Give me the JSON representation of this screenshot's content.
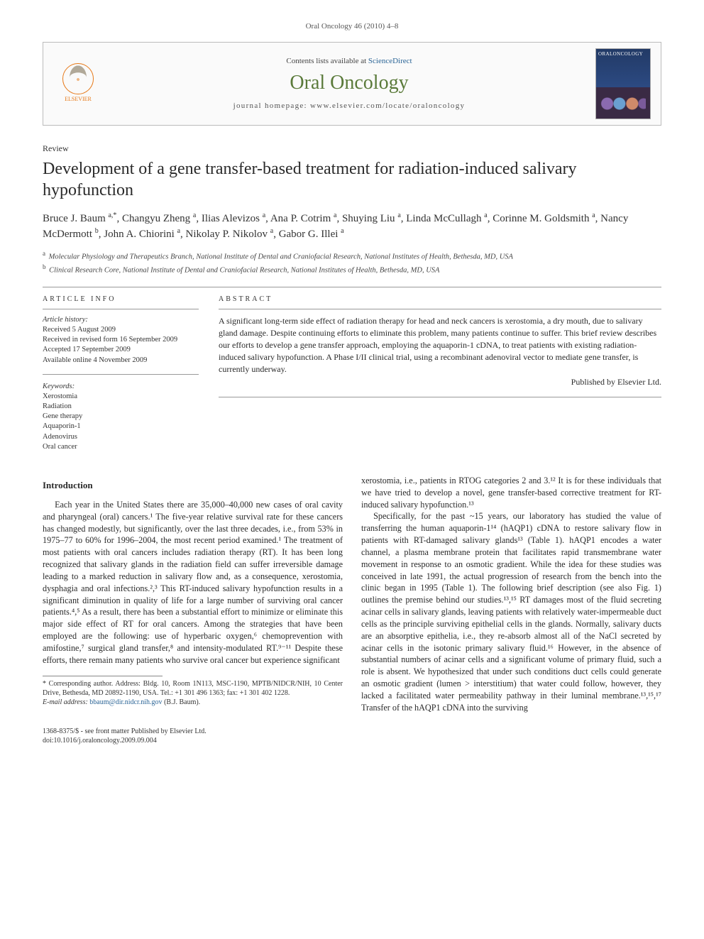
{
  "header": {
    "citation": "Oral Oncology 46 (2010) 4–8"
  },
  "masthead": {
    "publisher_name": "ELSEVIER",
    "contents_prefix": "Contents lists available at ",
    "contents_link": "ScienceDirect",
    "journal_title": "Oral Oncology",
    "homepage_prefix": "journal homepage: ",
    "homepage_url": "www.elsevier.com/locate/oraloncology",
    "cover_label": "ORALONCOLOGY"
  },
  "article": {
    "type": "Review",
    "title": "Development of a gene transfer-based treatment for radiation-induced salivary hypofunction",
    "authors_html": "Bruce J. Baum <sup>a,*</sup>, Changyu Zheng <sup>a</sup>, Ilias Alevizos <sup>a</sup>, Ana P. Cotrim <sup>a</sup>, Shuying Liu <sup>a</sup>, Linda McCullagh <sup>a</sup>, Corinne M. Goldsmith <sup>a</sup>, Nancy McDermott <sup>b</sup>, John A. Chiorini <sup>a</sup>, Nikolay P. Nikolov <sup>a</sup>, Gabor G. Illei <sup>a</sup>",
    "affiliations": [
      {
        "marker": "a",
        "text": "Molecular Physiology and Therapeutics Branch, National Institute of Dental and Craniofacial Research, National Institutes of Health, Bethesda, MD, USA"
      },
      {
        "marker": "b",
        "text": "Clinical Research Core, National Institute of Dental and Craniofacial Research, National Institutes of Health, Bethesda, MD, USA"
      }
    ]
  },
  "article_info": {
    "heading": "ARTICLE INFO",
    "history_label": "Article history:",
    "history": [
      "Received 5 August 2009",
      "Received in revised form 16 September 2009",
      "Accepted 17 September 2009",
      "Available online 4 November 2009"
    ],
    "keywords_label": "Keywords:",
    "keywords": [
      "Xerostomia",
      "Radiation",
      "Gene therapy",
      "Aquaporin-1",
      "Adenovirus",
      "Oral cancer"
    ]
  },
  "abstract": {
    "heading": "ABSTRACT",
    "text": "A significant long-term side effect of radiation therapy for head and neck cancers is xerostomia, a dry mouth, due to salivary gland damage. Despite continuing efforts to eliminate this problem, many patients continue to suffer. This brief review describes our efforts to develop a gene transfer approach, employing the aquaporin-1 cDNA, to treat patients with existing radiation-induced salivary hypofunction. A Phase I/II clinical trial, using a recombinant adenoviral vector to mediate gene transfer, is currently underway.",
    "publisher_line": "Published by Elsevier Ltd."
  },
  "body": {
    "intro_heading": "Introduction",
    "col1_p1": "Each year in the United States there are 35,000–40,000 new cases of oral cavity and pharyngeal (oral) cancers.¹ The five-year relative survival rate for these cancers has changed modestly, but significantly, over the last three decades, i.e., from 53% in 1975–77 to 60% for 1996–2004, the most recent period examined.¹ The treatment of most patients with oral cancers includes radiation therapy (RT). It has been long recognized that salivary glands in the radiation field can suffer irreversible damage leading to a marked reduction in salivary flow and, as a consequence, xerostomia, dysphagia and oral infections.²,³ This RT-induced salivary hypofunction results in a significant diminution in quality of life for a large number of surviving oral cancer patients.⁴,⁵ As a result, there has been a substantial effort to minimize or eliminate this major side effect of RT for oral cancers. Among the strategies that have been employed are the following: use of hyperbaric oxygen,⁶ chemoprevention with amifostine,⁷ surgical gland transfer,⁸ and intensity-modulated RT.⁹⁻¹¹ Despite these efforts, there remain many patients who survive oral cancer but experience significant",
    "col2_p1": "xerostomia, i.e., patients in RTOG categories 2 and 3.¹² It is for these individuals that we have tried to develop a novel, gene transfer-based corrective treatment for RT-induced salivary hypofunction.¹³",
    "col2_p2": "Specifically, for the past ~15 years, our laboratory has studied the value of transferring the human aquaporin-1¹⁴ (hAQP1) cDNA to restore salivary flow in patients with RT-damaged salivary glands¹³ (Table 1). hAQP1 encodes a water channel, a plasma membrane protein that facilitates rapid transmembrane water movement in response to an osmotic gradient. While the idea for these studies was conceived in late 1991, the actual progression of research from the bench into the clinic began in 1995 (Table 1). The following brief description (see also Fig. 1) outlines the premise behind our studies.¹³,¹⁵ RT damages most of the fluid secreting acinar cells in salivary glands, leaving patients with relatively water-impermeable duct cells as the principle surviving epithelial cells in the glands. Normally, salivary ducts are an absorptive epithelia, i.e., they re-absorb almost all of the NaCl secreted by acinar cells in the isotonic primary salivary fluid.¹⁶ However, in the absence of substantial numbers of acinar cells and a significant volume of primary fluid, such a role is absent. We hypothesized that under such conditions duct cells could generate an osmotic gradient (lumen > interstitium) that water could follow, however, they lacked a facilitated water permeability pathway in their luminal membrane.¹³,¹⁵,¹⁷ Transfer of the hAQP1 cDNA into the surviving"
  },
  "footnotes": {
    "corresponding": "* Corresponding author. Address: Bldg. 10, Room 1N113, MSC-1190, MPTB/NIDCR/NIH, 10 Center Drive, Bethesda, MD 20892-1190, USA. Tel.: +1 301 496 1363; fax: +1 301 402 1228.",
    "email_label": "E-mail address:",
    "email": "bbaum@dir.nidcr.nih.gov",
    "email_suffix": "(B.J. Baum)."
  },
  "footer": {
    "copyright": "1368-8375/$ - see front matter Published by Elsevier Ltd.",
    "doi": "doi:10.1016/j.oraloncology.2009.09.004"
  },
  "colors": {
    "journal_title": "#5a7a3a",
    "link": "#2a6496",
    "rule": "#999999",
    "text": "#2a2a2a",
    "elsevier_orange": "#e67817",
    "cover_top": "#223a66"
  }
}
